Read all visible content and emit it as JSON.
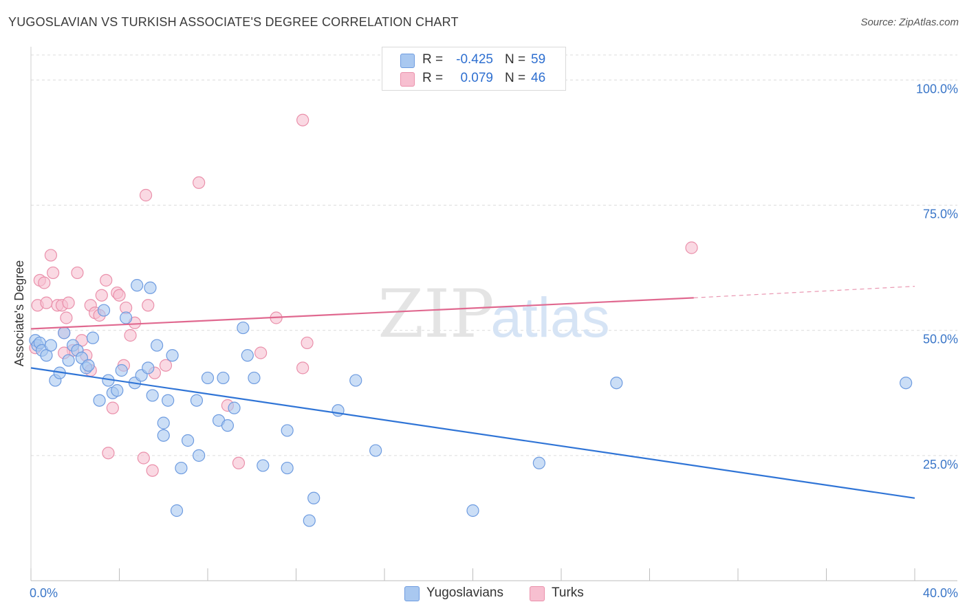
{
  "title": "YUGOSLAVIAN VS TURKISH ASSOCIATE'S DEGREE CORRELATION CHART",
  "source": "Source: ZipAtlas.com",
  "watermark": {
    "zip": "ZIP",
    "atlas": "atlas"
  },
  "colors": {
    "blue_fill": "#a9c8f0",
    "blue_stroke": "#6d9be0",
    "blue_line": "#2f74d6",
    "pink_fill": "#f7bfd0",
    "pink_stroke": "#ea8faa",
    "pink_line": "#e0688f",
    "axis_label": "#3a76c8",
    "grid": "#dcdcdc"
  },
  "legend_top": {
    "rows": [
      {
        "r_label": "R =",
        "r_value": "-0.425",
        "n_label": "N =",
        "n_value": "59",
        "color": "#a9c8f0",
        "border": "#6d9be0"
      },
      {
        "r_label": "R =",
        "r_value": "0.079",
        "n_label": "N =",
        "n_value": "46",
        "color": "#f7bfd0",
        "border": "#ea8faa"
      }
    ]
  },
  "legend_bottom": [
    {
      "label": "Yugoslavians",
      "color": "#a9c8f0",
      "border": "#6d9be0"
    },
    {
      "label": "Turks",
      "color": "#f7bfd0",
      "border": "#ea8faa"
    }
  ],
  "chart_data": {
    "type": "scatter",
    "title": "YUGOSLAVIAN VS TURKISH ASSOCIATE'S DEGREE CORRELATION CHART",
    "xlabel": "",
    "ylabel": "Associate's Degree",
    "xlim": [
      0,
      40
    ],
    "ylim": [
      0,
      105
    ],
    "x_tick_labels": [
      {
        "value": 0,
        "label": "0.0%"
      },
      {
        "value": 40,
        "label": "40.0%"
      }
    ],
    "y_tick_labels": [
      {
        "value": 25,
        "label": "25.0%"
      },
      {
        "value": 50,
        "label": "50.0%"
      },
      {
        "value": 75,
        "label": "75.0%"
      },
      {
        "value": 100,
        "label": "100.0%"
      }
    ],
    "grid": true,
    "legend_position": "top-center",
    "series": [
      {
        "name": "Yugoslavians",
        "color": "#a9c8f0",
        "points": [
          [
            0.2,
            48
          ],
          [
            0.3,
            47
          ],
          [
            0.4,
            47.5
          ],
          [
            0.5,
            46
          ],
          [
            0.7,
            45
          ],
          [
            0.9,
            47
          ],
          [
            1.1,
            40
          ],
          [
            1.3,
            41.5
          ],
          [
            1.5,
            49.5
          ],
          [
            1.7,
            44
          ],
          [
            1.9,
            47
          ],
          [
            2.1,
            46
          ],
          [
            2.3,
            44.5
          ],
          [
            2.5,
            42.5
          ],
          [
            2.6,
            43
          ],
          [
            2.8,
            48.5
          ],
          [
            3.1,
            36
          ],
          [
            3.3,
            54
          ],
          [
            3.5,
            40
          ],
          [
            3.7,
            37.5
          ],
          [
            3.9,
            38
          ],
          [
            4.1,
            42
          ],
          [
            4.3,
            52.5
          ],
          [
            4.7,
            39.5
          ],
          [
            5.0,
            41
          ],
          [
            5.3,
            42.5
          ],
          [
            5.5,
            37
          ],
          [
            5.7,
            47
          ],
          [
            6.0,
            31.5
          ],
          [
            6.0,
            29
          ],
          [
            6.2,
            36
          ],
          [
            6.4,
            45
          ],
          [
            6.8,
            22.5
          ],
          [
            6.6,
            14
          ],
          [
            7.1,
            28
          ],
          [
            7.5,
            36
          ],
          [
            7.6,
            25
          ],
          [
            8.0,
            40.5
          ],
          [
            8.5,
            32
          ],
          [
            8.7,
            40.5
          ],
          [
            8.9,
            31
          ],
          [
            9.2,
            34.5
          ],
          [
            9.6,
            50.5
          ],
          [
            9.8,
            45
          ],
          [
            10.1,
            40.5
          ],
          [
            10.5,
            23
          ],
          [
            11.6,
            22.5
          ],
          [
            11.6,
            30
          ],
          [
            12.8,
            16.5
          ],
          [
            12.6,
            12
          ],
          [
            13.9,
            34
          ],
          [
            14.7,
            40
          ],
          [
            15.6,
            26
          ],
          [
            20.0,
            14
          ],
          [
            23.0,
            23.5
          ],
          [
            26.5,
            39.5
          ],
          [
            39.6,
            39.5
          ],
          [
            4.8,
            59
          ],
          [
            5.4,
            58.5
          ]
        ]
      },
      {
        "name": "Turks",
        "color": "#f7bfd0",
        "points": [
          [
            0.2,
            46.5
          ],
          [
            0.3,
            55
          ],
          [
            0.4,
            60
          ],
          [
            0.6,
            59.5
          ],
          [
            0.7,
            55.5
          ],
          [
            0.9,
            65
          ],
          [
            1.0,
            61.5
          ],
          [
            1.2,
            55
          ],
          [
            1.4,
            55
          ],
          [
            1.5,
            49.5
          ],
          [
            1.6,
            52.5
          ],
          [
            1.7,
            55.5
          ],
          [
            1.9,
            46
          ],
          [
            2.1,
            61.5
          ],
          [
            2.3,
            48
          ],
          [
            2.5,
            45
          ],
          [
            2.7,
            55
          ],
          [
            2.9,
            53.5
          ],
          [
            3.1,
            53
          ],
          [
            3.2,
            57
          ],
          [
            3.4,
            60
          ],
          [
            3.7,
            34.5
          ],
          [
            3.5,
            25.5
          ],
          [
            3.9,
            57.5
          ],
          [
            4.0,
            57
          ],
          [
            4.2,
            43
          ],
          [
            4.3,
            54.5
          ],
          [
            4.5,
            49
          ],
          [
            4.7,
            51.5
          ],
          [
            5.1,
            24.5
          ],
          [
            5.3,
            55
          ],
          [
            5.5,
            22
          ],
          [
            5.6,
            41.5
          ],
          [
            6.1,
            43
          ],
          [
            7.6,
            79.5
          ],
          [
            5.2,
            77
          ],
          [
            8.9,
            35
          ],
          [
            9.4,
            23.5
          ],
          [
            10.4,
            45.5
          ],
          [
            11.1,
            52.5
          ],
          [
            12.3,
            42.5
          ],
          [
            12.5,
            47.5
          ],
          [
            12.3,
            92
          ],
          [
            29.9,
            66.5
          ],
          [
            1.5,
            45.5
          ],
          [
            2.7,
            42
          ]
        ]
      }
    ],
    "trendlines": [
      {
        "series": "Yugoslavians",
        "x": [
          0,
          40
        ],
        "y": [
          42.5,
          16.5
        ],
        "style": "solid"
      },
      {
        "series": "Turks",
        "x": [
          0,
          30
        ],
        "y": [
          50.3,
          56.5
        ],
        "style": "solid"
      },
      {
        "series": "Turks",
        "x": [
          30,
          40
        ],
        "y": [
          56.5,
          58.8
        ],
        "style": "dashed"
      }
    ]
  }
}
